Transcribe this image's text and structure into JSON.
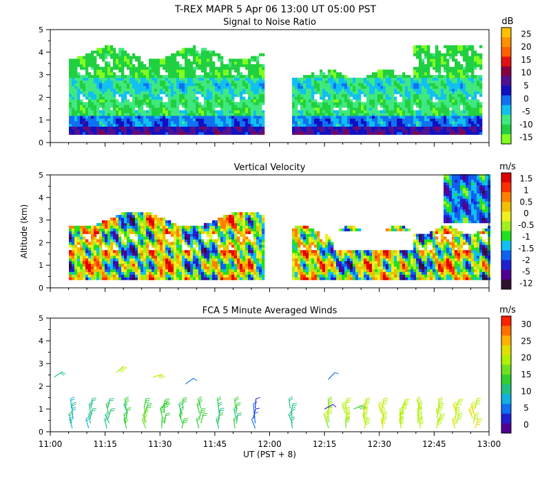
{
  "header": {
    "title": "T-REX   MAPR   5 Apr 06   13:00 UT   05:00   PST"
  },
  "colors": {
    "snr": [
      "#80ff20",
      "#20d040",
      "#40e880",
      "#10c0f0",
      "#1070f0",
      "#1010c0",
      "#501090",
      "#880040",
      "#e01010",
      "#ff6000",
      "#ff9000",
      "#ffc000"
    ],
    "vel": [
      "#301030",
      "#500090",
      "#2020d0",
      "#1060f0",
      "#10c0f0",
      "#20e020",
      "#a0f020",
      "#f0f020",
      "#f0c000",
      "#ff8000",
      "#ff3000",
      "#e00000"
    ],
    "wind": [
      "#500090",
      "#2020d0",
      "#1070f0",
      "#10b0e0",
      "#20c080",
      "#30d030",
      "#70e020",
      "#b0f000",
      "#e0e000",
      "#ffb000",
      "#ff7000",
      "#ff2000"
    ]
  },
  "chart_data": [
    {
      "type": "heatmap",
      "name": "snr",
      "title": "Signal to Noise Ratio",
      "xlabel": "",
      "ylabel": "",
      "xlim": [
        11.0,
        13.0
      ],
      "ylim": [
        0,
        5
      ],
      "yticks": [
        "0",
        "1",
        "2",
        "3",
        "4",
        "5"
      ],
      "colorbar": {
        "unit": "dB",
        "labels": [
          "25",
          "20",
          "15",
          "10",
          "5",
          "0",
          "-5",
          "-10",
          "-15"
        ]
      },
      "data_gap": [
        11.98,
        12.09
      ],
      "mean_profile": [
        {
          "altitude_km": 0.5,
          "snr_db": 5
        },
        {
          "altitude_km": 1.0,
          "snr_db": -5
        },
        {
          "altitude_km": 1.5,
          "snr_db": -12
        },
        {
          "altitude_km": 2.5,
          "snr_db": -8
        },
        {
          "altitude_km": 3.5,
          "snr_db": -13
        },
        {
          "altitude_km": 4.0,
          "snr_db": -15
        }
      ]
    },
    {
      "type": "heatmap",
      "name": "velocity",
      "title": "Vertical Velocity",
      "xlabel": "",
      "ylabel": "Altitude (km)",
      "xlim": [
        11.0,
        13.0
      ],
      "ylim": [
        0,
        5
      ],
      "yticks": [
        "0",
        "1",
        "2",
        "3",
        "4",
        "5"
      ],
      "colorbar": {
        "unit": "m/s",
        "labels": [
          "1.5",
          "1",
          "0.5",
          "0",
          "-0.5",
          "-1",
          "-1.5",
          "-2",
          "-5",
          "-12"
        ]
      },
      "data_gap": [
        11.98,
        12.09
      ]
    },
    {
      "type": "scatter",
      "name": "winds",
      "title": "FCA 5 Minute Averaged Winds",
      "xlabel": "UT  (PST + 8)",
      "ylabel": "",
      "xlim": [
        11.0,
        13.0
      ],
      "ylim": [
        0,
        5
      ],
      "xticks": [
        "11:00",
        "11:15",
        "11:30",
        "11:45",
        "12:00",
        "12:15",
        "12:30",
        "12:45",
        "13:00"
      ],
      "yticks": [
        "0",
        "1",
        "2",
        "3",
        "4",
        "5"
      ],
      "colorbar": {
        "unit": "m/s",
        "labels": [
          "30",
          "25",
          "20",
          "15",
          "10",
          "5",
          "0"
        ]
      },
      "wind_columns": [
        {
          "time_ut": 11.117,
          "speed_ms": 10
        },
        {
          "time_ut": 11.2,
          "speed_ms": 9
        },
        {
          "time_ut": 11.283,
          "speed_ms": 11
        },
        {
          "time_ut": 11.367,
          "speed_ms": 12
        },
        {
          "time_ut": 11.45,
          "speed_ms": 14
        },
        {
          "time_ut": 11.533,
          "speed_ms": 13
        },
        {
          "time_ut": 11.617,
          "speed_ms": 12
        },
        {
          "time_ut": 11.7,
          "speed_ms": 13
        },
        {
          "time_ut": 11.783,
          "speed_ms": 12
        },
        {
          "time_ut": 11.867,
          "speed_ms": 11
        },
        {
          "time_ut": 11.95,
          "speed_ms": 4
        },
        {
          "time_ut": 12.117,
          "speed_ms": 10
        },
        {
          "time_ut": 12.283,
          "speed_ms": 17
        },
        {
          "time_ut": 12.367,
          "speed_ms": 18
        },
        {
          "time_ut": 12.45,
          "speed_ms": 19
        },
        {
          "time_ut": 12.533,
          "speed_ms": 19
        },
        {
          "time_ut": 12.617,
          "speed_ms": 18
        },
        {
          "time_ut": 12.7,
          "speed_ms": 18
        },
        {
          "time_ut": 12.783,
          "speed_ms": 18
        },
        {
          "time_ut": 12.867,
          "speed_ms": 20
        },
        {
          "time_ut": 12.95,
          "speed_ms": 20
        }
      ],
      "upper_barbs": [
        {
          "time_ut": 11.017,
          "altitude_km": 2.4,
          "speed_ms": 10
        },
        {
          "time_ut": 11.3,
          "altitude_km": 2.6,
          "speed_ms": 18
        },
        {
          "time_ut": 11.467,
          "altitude_km": 2.4,
          "speed_ms": 17
        },
        {
          "time_ut": 11.617,
          "altitude_km": 2.1,
          "speed_ms": 4
        },
        {
          "time_ut": 11.5,
          "altitude_km": 1.0,
          "speed_ms": 12
        },
        {
          "time_ut": 12.267,
          "altitude_km": 2.3,
          "speed_ms": 4
        },
        {
          "time_ut": 12.25,
          "altitude_km": 1.0,
          "speed_ms": 3
        },
        {
          "time_ut": 12.383,
          "altitude_km": 1.0,
          "speed_ms": 14
        }
      ]
    }
  ]
}
